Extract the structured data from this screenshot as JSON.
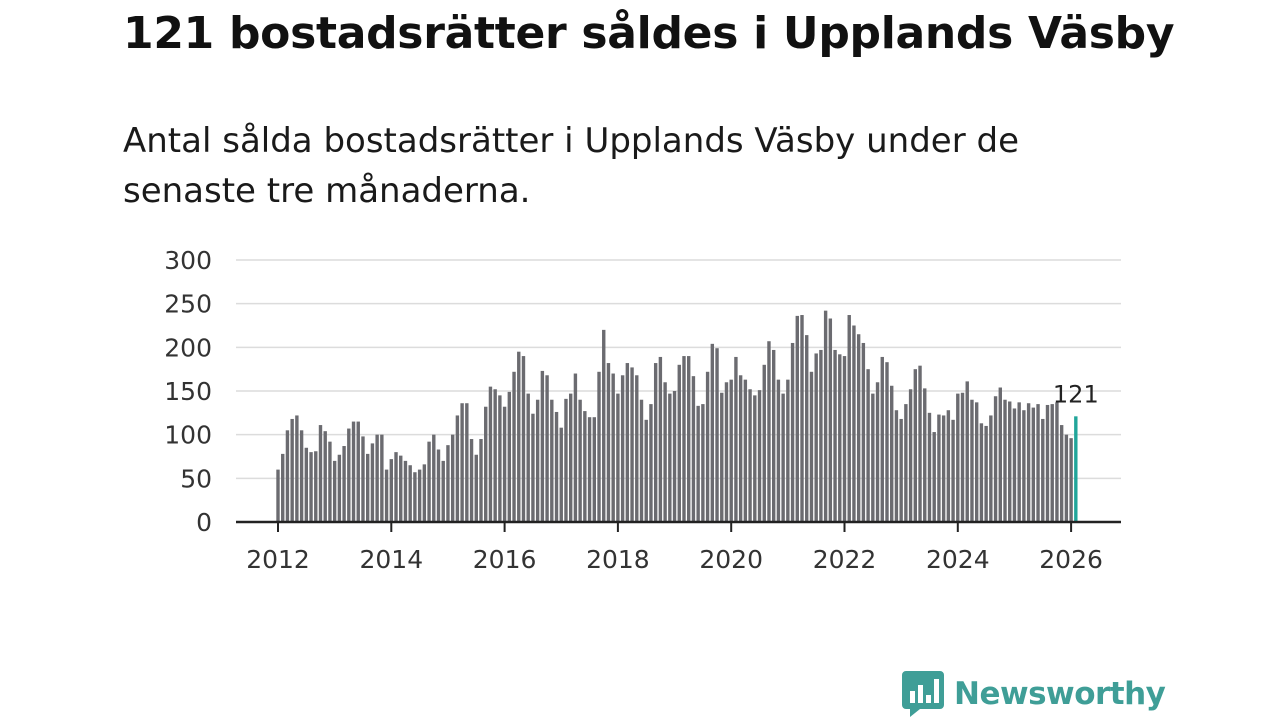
{
  "title": "121 bostadsrätter såldes i Upplands Väsby",
  "subtitle": "Antal sålda bostadsrätter i Upplands Väsby under de senaste tre månaderna.",
  "logo": {
    "text": "Newsworthy",
    "icon": "newsworthy-logo-icon",
    "color": "#3f9e97"
  },
  "chart_data": {
    "type": "bar",
    "title": "",
    "xlabel": "",
    "ylabel": "",
    "ylim": [
      0,
      300
    ],
    "yticks": [
      "0",
      "50",
      "100",
      "150",
      "200",
      "250",
      "300"
    ],
    "xticks": [
      "2012",
      "2014",
      "2016",
      "2018",
      "2020",
      "2022",
      "2024",
      "2026"
    ],
    "x_start": "2012-01",
    "bar_color": "#6b6b70",
    "highlight_color": "#21a59a",
    "highlight_label": "121",
    "values": [
      60,
      78,
      105,
      118,
      122,
      105,
      85,
      80,
      81,
      111,
      104,
      92,
      70,
      77,
      87,
      107,
      115,
      115,
      98,
      78,
      90,
      100,
      100,
      60,
      72,
      80,
      76,
      70,
      65,
      57,
      60,
      66,
      92,
      100,
      83,
      70,
      88,
      100,
      122,
      136,
      136,
      95,
      77,
      95,
      132,
      155,
      152,
      145,
      132,
      149,
      172,
      195,
      190,
      147,
      124,
      140,
      173,
      168,
      140,
      126,
      108,
      141,
      147,
      170,
      140,
      127,
      120,
      120,
      172,
      220,
      182,
      170,
      147,
      168,
      182,
      177,
      168,
      140,
      117,
      135,
      182,
      189,
      160,
      147,
      150,
      180,
      190,
      190,
      167,
      133,
      135,
      172,
      204,
      199,
      148,
      160,
      163,
      189,
      168,
      163,
      152,
      145,
      151,
      180,
      207,
      197,
      163,
      147,
      163,
      205,
      236,
      237,
      214,
      172,
      193,
      197,
      242,
      233,
      197,
      192,
      190,
      237,
      225,
      215,
      205,
      175,
      147,
      160,
      189,
      183,
      156,
      128,
      118,
      135,
      152,
      175,
      179,
      153,
      125,
      103,
      123,
      122,
      128,
      117,
      147,
      148,
      161,
      140,
      137,
      113,
      110,
      122,
      144,
      154,
      140,
      138,
      130,
      137,
      128,
      136,
      131,
      135,
      118,
      134,
      135,
      137,
      111,
      100,
      96,
      121
    ]
  }
}
